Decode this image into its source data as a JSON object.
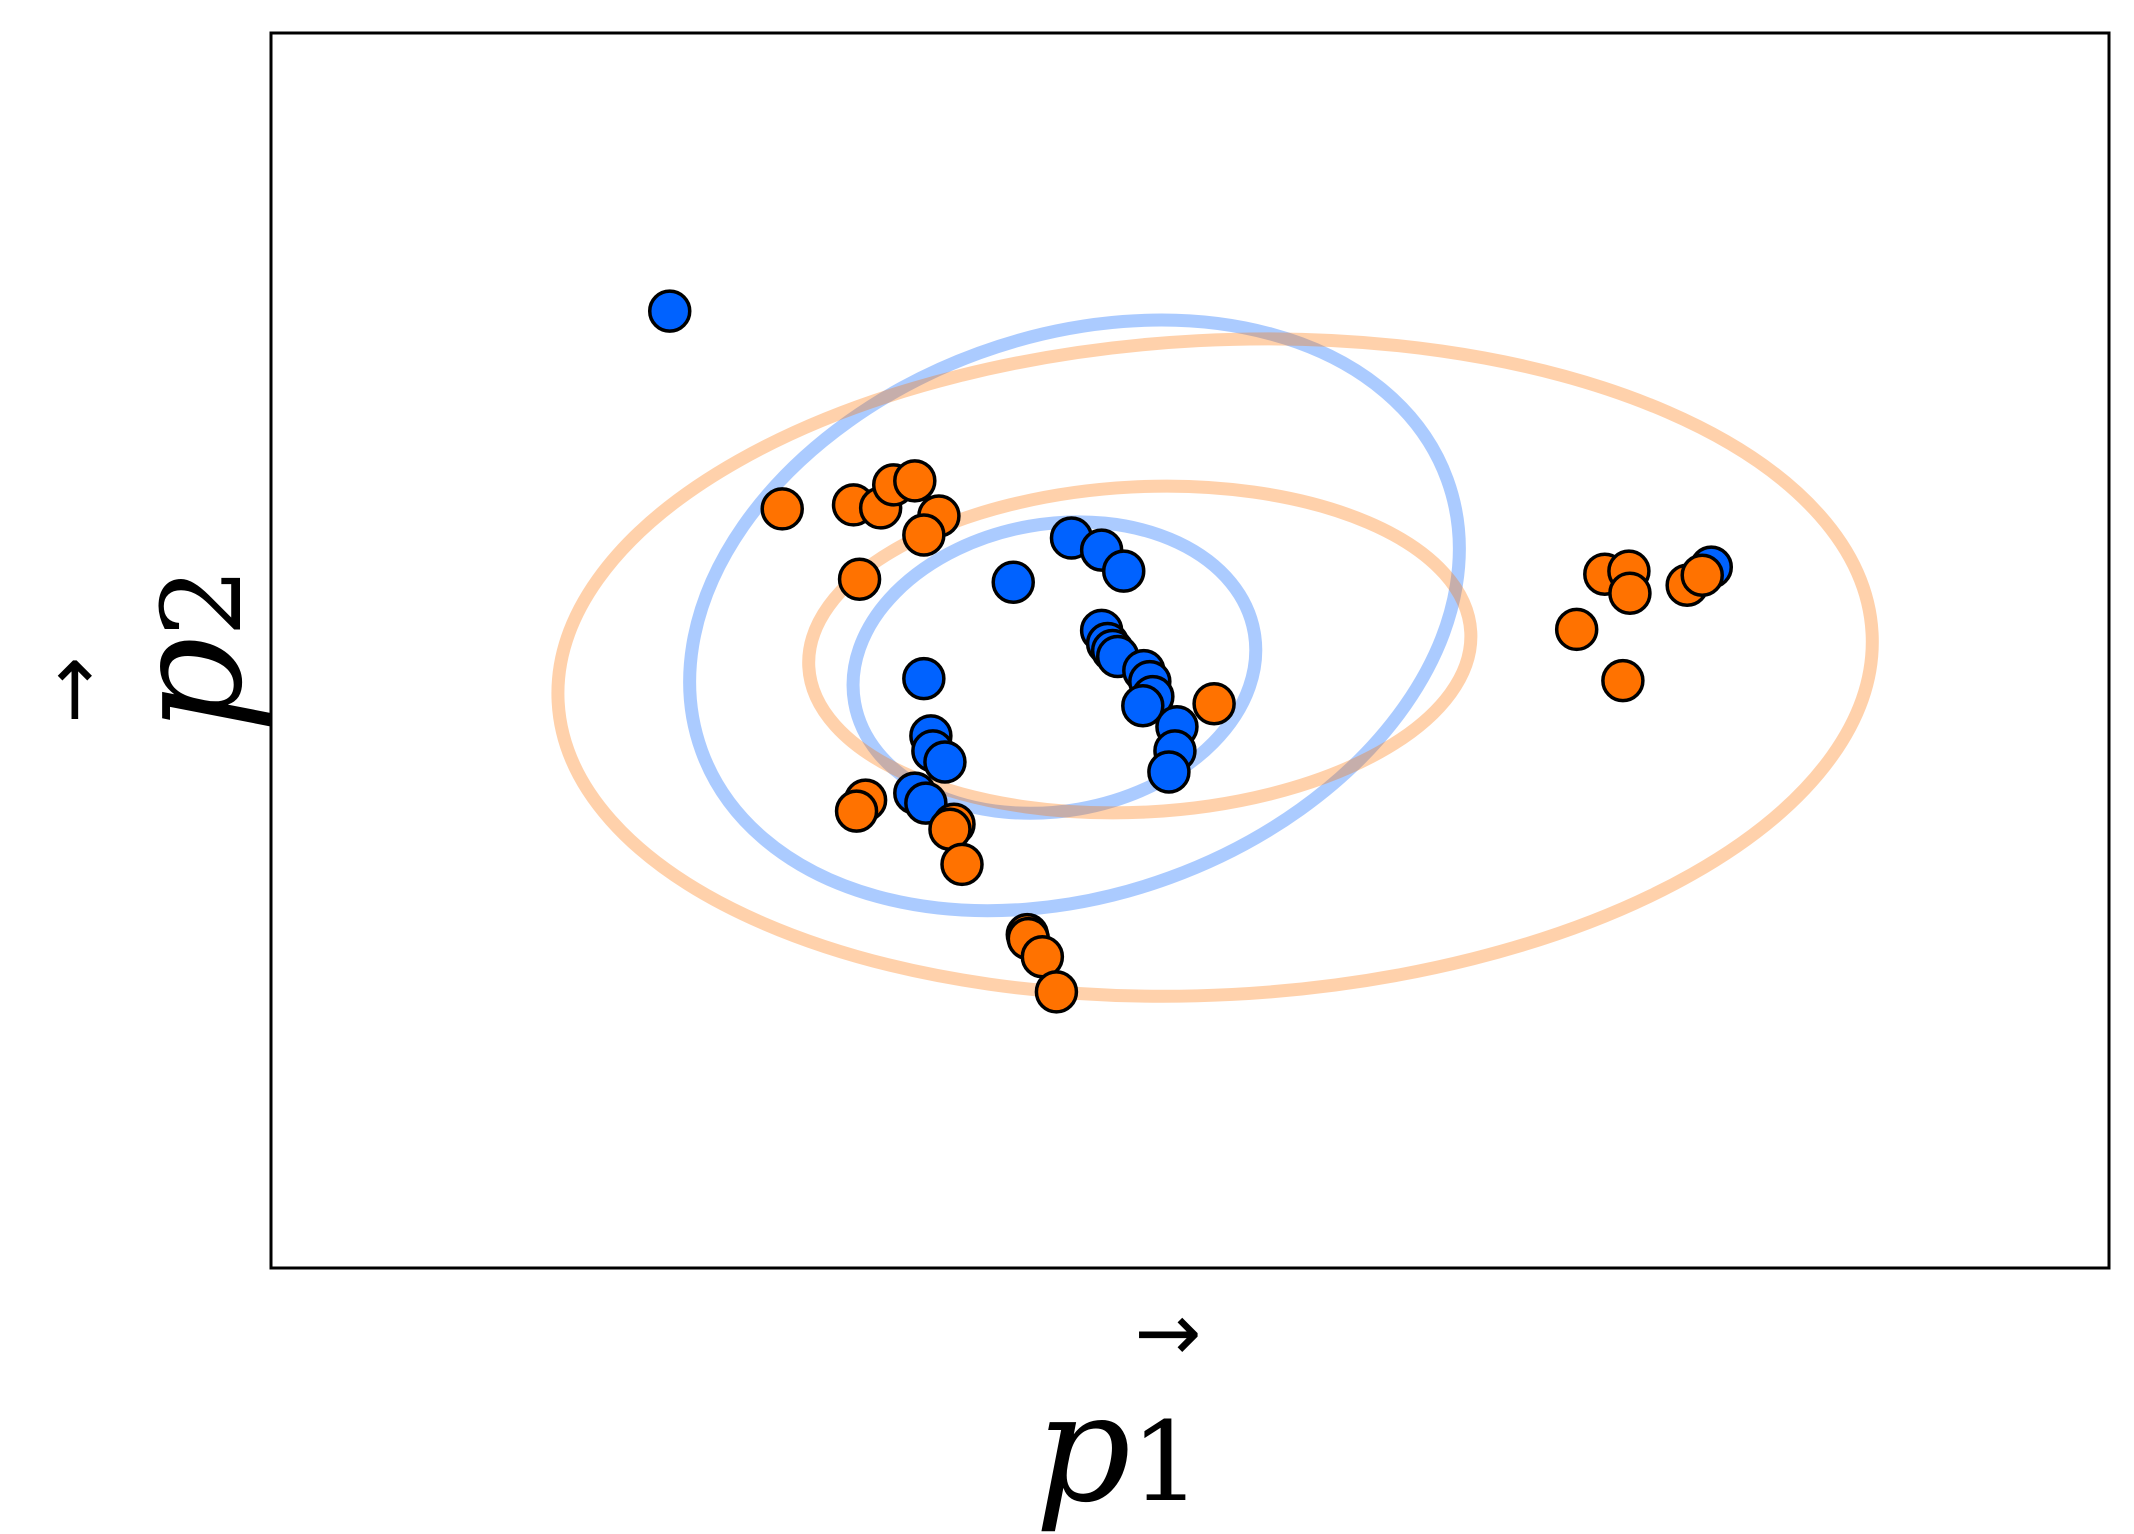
{
  "chart_data": {
    "type": "scatter",
    "title": "",
    "xlabel": "p⃗1",
    "ylabel": "p⃗2",
    "xlabel_parts": {
      "base": "p",
      "sub": "1"
    },
    "ylabel_parts": {
      "base": "p",
      "sub": "2"
    },
    "xlim": [
      0,
      1.83
    ],
    "ylim": [
      0,
      1.23
    ],
    "grid": false,
    "ticks": false,
    "legend": "none",
    "series": [
      {
        "color": "#0062ff",
        "points": [
          [
            0.397,
            0.953
          ],
          [
            0.739,
            0.683
          ],
          [
            0.65,
            0.587
          ],
          [
            0.797,
            0.727
          ],
          [
            0.827,
            0.715
          ],
          [
            0.849,
            0.694
          ],
          [
            0.827,
            0.635
          ],
          [
            0.833,
            0.622
          ],
          [
            0.838,
            0.615
          ],
          [
            0.843,
            0.609
          ],
          [
            0.869,
            0.595
          ],
          [
            0.875,
            0.584
          ],
          [
            0.878,
            0.569
          ],
          [
            0.868,
            0.56
          ],
          [
            0.902,
            0.539
          ],
          [
            0.9,
            0.515
          ],
          [
            0.894,
            0.494
          ],
          [
            0.657,
            0.53
          ],
          [
            0.659,
            0.515
          ],
          [
            0.671,
            0.504
          ],
          [
            0.641,
            0.473
          ],
          [
            0.652,
            0.463
          ],
          [
            1.434,
            0.698
          ]
        ],
        "ellipses": [
          {
            "cx": 0.78,
            "cy": 0.598,
            "rx": 0.202,
            "ry": 0.143,
            "angle": -10
          },
          {
            "cx": 0.8,
            "cy": 0.65,
            "rx": 0.395,
            "ry": 0.278,
            "angle": -20
          }
        ]
      },
      {
        "color": "#ff7200",
        "points": [
          [
            0.509,
            0.756
          ],
          [
            0.58,
            0.76
          ],
          [
            0.607,
            0.757
          ],
          [
            0.62,
            0.78
          ],
          [
            0.641,
            0.784
          ],
          [
            0.665,
            0.749
          ],
          [
            0.65,
            0.73
          ],
          [
            0.586,
            0.686
          ],
          [
            0.939,
            0.562
          ],
          [
            0.592,
            0.466
          ],
          [
            0.583,
            0.455
          ],
          [
            0.68,
            0.442
          ],
          [
            0.676,
            0.437
          ],
          [
            0.688,
            0.402
          ],
          [
            0.753,
            0.332
          ],
          [
            0.754,
            0.328
          ],
          [
            0.768,
            0.31
          ],
          [
            0.782,
            0.275
          ],
          [
            1.328,
            0.691
          ],
          [
            1.352,
            0.694
          ],
          [
            1.353,
            0.672
          ],
          [
            1.41,
            0.68
          ],
          [
            1.425,
            0.69
          ],
          [
            1.3,
            0.636
          ],
          [
            1.346,
            0.585
          ]
        ],
        "ellipses": [
          {
            "cx": 0.865,
            "cy": 0.616,
            "rx": 0.33,
            "ry": 0.162,
            "angle": -3
          },
          {
            "cx": 0.94,
            "cy": 0.598,
            "rx": 0.655,
            "ry": 0.326,
            "angle": -3
          }
        ]
      }
    ]
  }
}
